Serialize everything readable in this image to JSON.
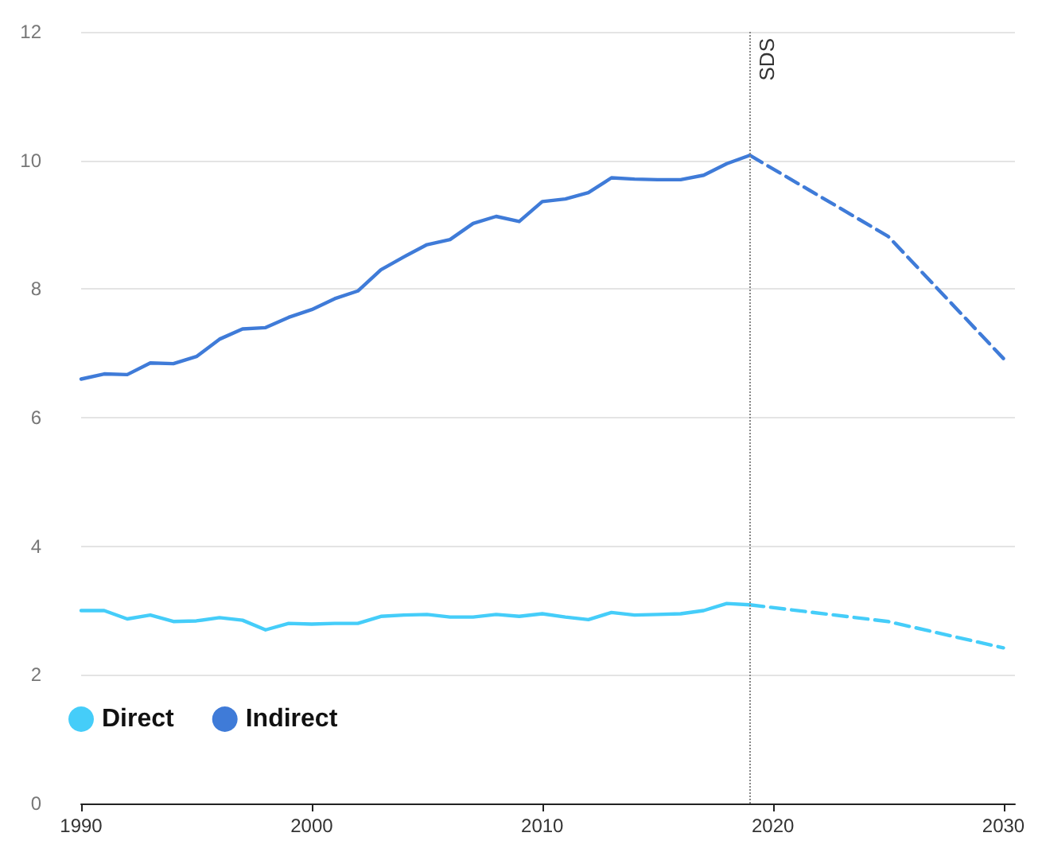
{
  "chart_data": {
    "type": "line",
    "xlim": [
      1990,
      2030.5
    ],
    "xticks": [
      1990,
      2000,
      2010,
      2020,
      2030
    ],
    "ylim": [
      0,
      12
    ],
    "yticks": [
      0,
      2,
      4,
      6,
      8,
      10,
      12
    ],
    "grid": "y",
    "legend": "bottom left",
    "marker": "none",
    "line_style": "solid",
    "series": [
      {
        "name": "Direct",
        "color": "#45cdf9",
        "x": [
          1990,
          1991,
          1992,
          1993,
          1994,
          1995,
          1996,
          1997,
          1998,
          1999,
          2000,
          2001,
          2002,
          2003,
          2004,
          2005,
          2006,
          2007,
          2008,
          2009,
          2010,
          2011,
          2012,
          2013,
          2014,
          2015,
          2016,
          2017,
          2018,
          2019
        ],
        "values": [
          3.0,
          3.0,
          2.87,
          2.93,
          2.83,
          2.84,
          2.89,
          2.85,
          2.7,
          2.8,
          2.79,
          2.8,
          2.8,
          2.91,
          2.93,
          2.94,
          2.9,
          2.9,
          2.94,
          2.91,
          2.95,
          2.9,
          2.86,
          2.97,
          2.93,
          2.94,
          2.95,
          3.0,
          3.11,
          3.09
        ]
      },
      {
        "name": "Indirect",
        "color": "#3f7bd8",
        "x": [
          1990,
          1991,
          1992,
          1993,
          1994,
          1995,
          1996,
          1997,
          1998,
          1999,
          2000,
          2001,
          2002,
          2003,
          2004,
          2005,
          2006,
          2007,
          2008,
          2009,
          2010,
          2011,
          2012,
          2013,
          2014,
          2015,
          2016,
          2017,
          2018,
          2019
        ],
        "values": [
          6.6,
          6.68,
          6.67,
          6.85,
          6.84,
          6.95,
          7.22,
          7.38,
          7.4,
          7.56,
          7.68,
          7.85,
          7.97,
          8.3,
          8.5,
          8.69,
          8.77,
          9.02,
          9.13,
          9.05,
          9.36,
          9.4,
          9.5,
          9.73,
          9.71,
          9.7,
          9.7,
          9.77,
          9.95,
          10.08
        ]
      },
      {
        "color": "#45cdf9",
        "line_style": "dashed",
        "x": [
          2019,
          2025,
          2030
        ],
        "values": [
          3.09,
          2.83,
          2.42
        ]
      },
      {
        "color": "#3f7bd8",
        "line_style": "dashed",
        "x": [
          2019,
          2025,
          2030
        ],
        "values": [
          10.08,
          8.82,
          6.92
        ]
      }
    ],
    "ref_lines": [
      {
        "axis": "x",
        "value": 2019,
        "label": "SDS",
        "color": "#888888",
        "line_style": "dotted"
      }
    ]
  }
}
